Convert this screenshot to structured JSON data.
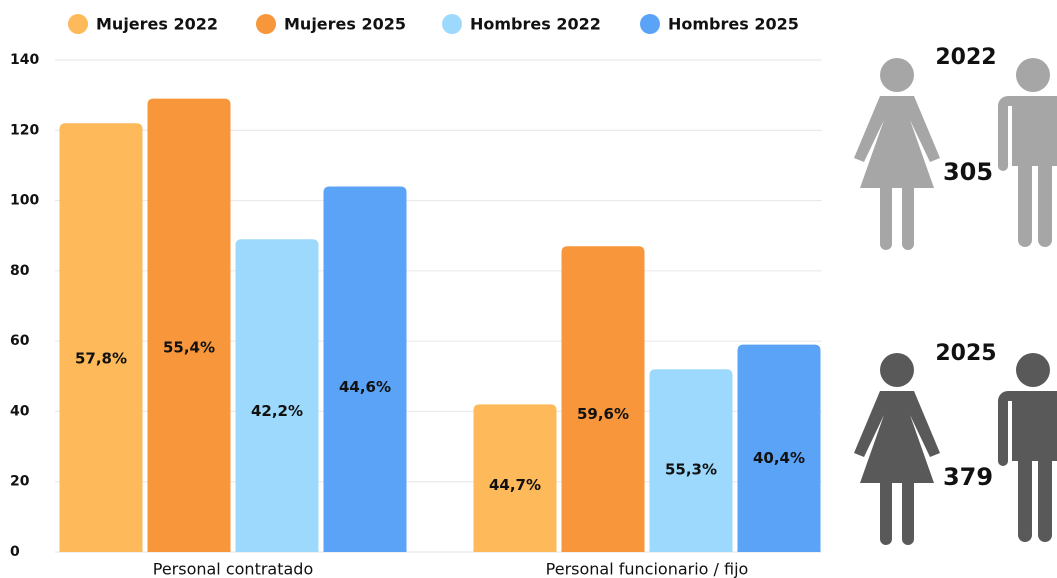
{
  "chart_data": {
    "type": "bar",
    "categories": [
      "Personal contratado",
      "Personal funcionario / fijo"
    ],
    "series": [
      {
        "name": "Mujeres 2022",
        "color": "#fdb95a",
        "values": [
          122,
          42
        ],
        "labels": [
          "57,8%",
          "44,7%"
        ]
      },
      {
        "name": "Mujeres 2025",
        "color": "#f7963b",
        "values": [
          129,
          87
        ],
        "labels": [
          "55,4%",
          "59,6%"
        ]
      },
      {
        "name": "Hombres 2022",
        "color": "#9dd9fc",
        "values": [
          89,
          52
        ],
        "labels": [
          "42,2%",
          "55,3%"
        ]
      },
      {
        "name": "Hombres 2025",
        "color": "#5aa3f6",
        "values": [
          104,
          59
        ],
        "labels": [
          "44,6%",
          "40,4%"
        ]
      }
    ],
    "ylim": [
      0,
      140
    ],
    "yticks": [
      0,
      20,
      40,
      60,
      80,
      100,
      120,
      140
    ],
    "grid": true,
    "legend": "top"
  },
  "totals": [
    {
      "year": "2022",
      "total": 305
    },
    {
      "year": "2025",
      "total": 379
    }
  ]
}
